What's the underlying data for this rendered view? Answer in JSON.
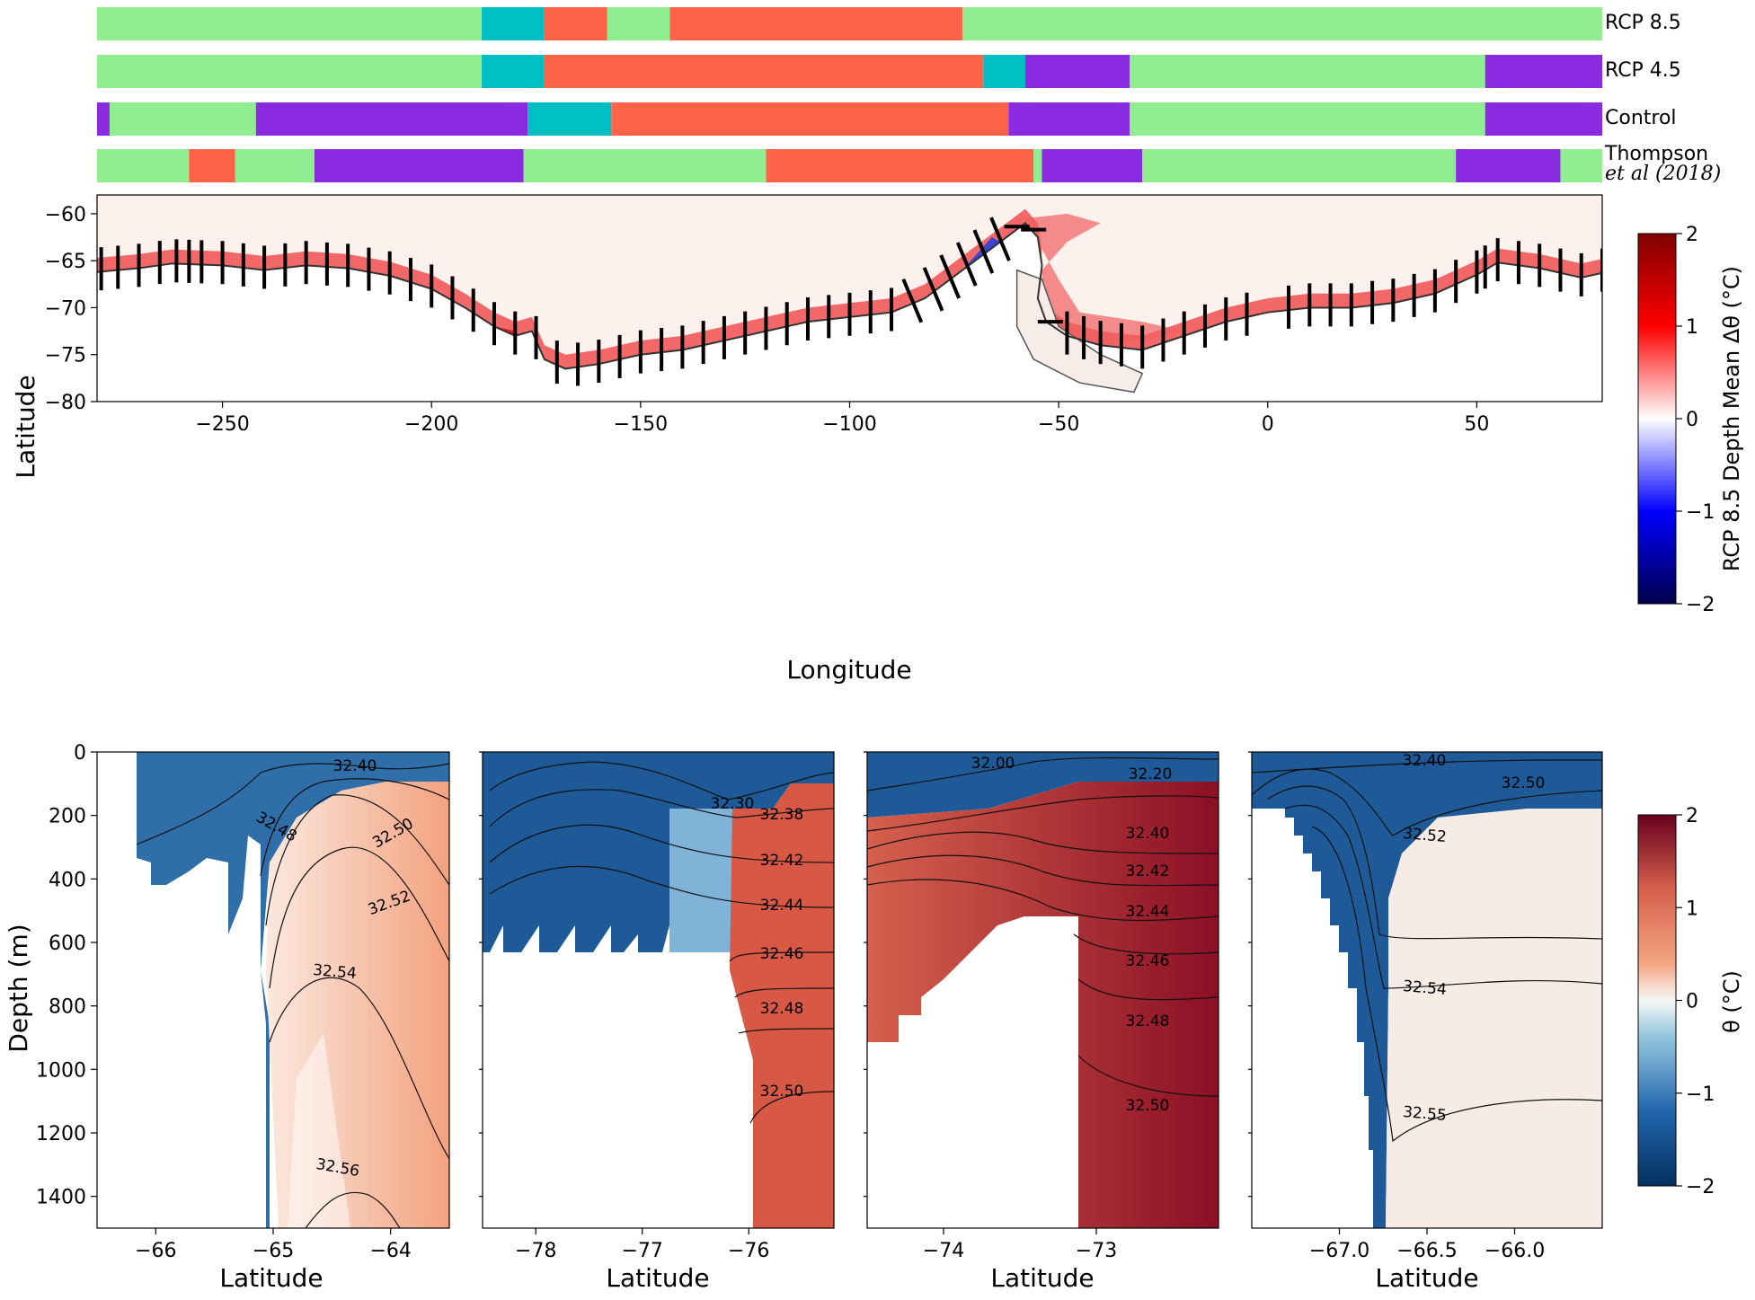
{
  "colors": {
    "green": "#90ee90",
    "teal": "#00bfc4",
    "red": "#ff6347",
    "purple": "#8a2be2",
    "cold": "#08306b",
    "warm": "#b2182b"
  },
  "regime_legend": {
    "rows": [
      {
        "label": "RCP 8.5",
        "label2": "",
        "segments": [
          {
            "from": -280,
            "to": -188,
            "regime": "green"
          },
          {
            "from": -188,
            "to": -173,
            "regime": "teal"
          },
          {
            "from": -173,
            "to": -158,
            "regime": "red"
          },
          {
            "from": -158,
            "to": -143,
            "regime": "green"
          },
          {
            "from": -143,
            "to": -73,
            "regime": "red"
          },
          {
            "from": -73,
            "to": 80,
            "regime": "green"
          }
        ]
      },
      {
        "label": "RCP 4.5",
        "label2": "",
        "segments": [
          {
            "from": -280,
            "to": -188,
            "regime": "green"
          },
          {
            "from": -188,
            "to": -173,
            "regime": "teal"
          },
          {
            "from": -173,
            "to": -68,
            "regime": "red"
          },
          {
            "from": -68,
            "to": -58,
            "regime": "teal"
          },
          {
            "from": -58,
            "to": -33,
            "regime": "purple"
          },
          {
            "from": -33,
            "to": 52,
            "regime": "green"
          },
          {
            "from": 52,
            "to": 80,
            "regime": "purple"
          }
        ]
      },
      {
        "label": "Control",
        "label2": "",
        "segments": [
          {
            "from": -280,
            "to": -277,
            "regime": "purple"
          },
          {
            "from": -277,
            "to": -242,
            "regime": "green"
          },
          {
            "from": -242,
            "to": -177,
            "regime": "purple"
          },
          {
            "from": -177,
            "to": -157,
            "regime": "teal"
          },
          {
            "from": -157,
            "to": -62,
            "regime": "red"
          },
          {
            "from": -62,
            "to": -33,
            "regime": "purple"
          },
          {
            "from": -33,
            "to": 52,
            "regime": "green"
          },
          {
            "from": 52,
            "to": 80,
            "regime": "purple"
          }
        ]
      },
      {
        "label": "Thompson",
        "label2": "et al (2018)",
        "segments": [
          {
            "from": -280,
            "to": -258,
            "regime": "green"
          },
          {
            "from": -258,
            "to": -247,
            "regime": "red"
          },
          {
            "from": -247,
            "to": -228,
            "regime": "green"
          },
          {
            "from": -228,
            "to": -178,
            "regime": "purple"
          },
          {
            "from": -178,
            "to": -120,
            "regime": "green"
          },
          {
            "from": -120,
            "to": -56,
            "regime": "red"
          },
          {
            "from": -56,
            "to": -54,
            "regime": "green"
          },
          {
            "from": -54,
            "to": -30,
            "regime": "purple"
          },
          {
            "from": -30,
            "to": 45,
            "regime": "green"
          },
          {
            "from": 45,
            "to": 70,
            "regime": "purple"
          },
          {
            "from": 70,
            "to": 80,
            "regime": "green"
          }
        ]
      }
    ]
  },
  "chart_data": [
    {
      "type": "heatmap",
      "title": "",
      "xlabel": "Longitude",
      "ylabel": "Latitude",
      "xlim": [
        -280,
        80
      ],
      "ylim": [
        -80,
        -58
      ],
      "xticks": [
        -250,
        -200,
        -150,
        -100,
        -50,
        0,
        50
      ],
      "yticks": [
        -80,
        -75,
        -70,
        -65,
        -60
      ],
      "colorbar": {
        "label": "RCP 8.5 Depth Mean Δθ (°C)",
        "range": [
          -2,
          2
        ],
        "ticks": [
          -2,
          -1,
          0,
          1,
          2
        ],
        "cmap": "seismic"
      },
      "coastline": [
        [
          -280,
          -66.2
        ],
        [
          -270,
          -65.8
        ],
        [
          -262,
          -65.3
        ],
        [
          -250,
          -65.5
        ],
        [
          -240,
          -66.0
        ],
        [
          -230,
          -65.5
        ],
        [
          -220,
          -65.8
        ],
        [
          -210,
          -66.6
        ],
        [
          -200,
          -68.0
        ],
        [
          -192,
          -70.0
        ],
        [
          -185,
          -72.0
        ],
        [
          -180,
          -73.0
        ],
        [
          -176,
          -72.5
        ],
        [
          -173,
          -75.5
        ],
        [
          -168,
          -76.5
        ],
        [
          -160,
          -76.0
        ],
        [
          -150,
          -75.0
        ],
        [
          -140,
          -74.5
        ],
        [
          -130,
          -73.5
        ],
        [
          -120,
          -72.5
        ],
        [
          -110,
          -71.5
        ],
        [
          -100,
          -71.0
        ],
        [
          -90,
          -70.5
        ],
        [
          -82,
          -69.0
        ],
        [
          -76,
          -67.0
        ],
        [
          -70,
          -65.0
        ],
        [
          -64,
          -63.0
        ],
        [
          -58,
          -61.0
        ],
        [
          -55,
          -62.5
        ],
        [
          -54,
          -65.5
        ],
        [
          -55,
          -69.0
        ],
        [
          -53,
          -71.5
        ],
        [
          -48,
          -73.0
        ],
        [
          -40,
          -74.0
        ],
        [
          -30,
          -74.5
        ],
        [
          -20,
          -73.0
        ],
        [
          -10,
          -71.5
        ],
        [
          0,
          -70.5
        ],
        [
          10,
          -70.0
        ],
        [
          20,
          -70.0
        ],
        [
          30,
          -69.5
        ],
        [
          40,
          -68.5
        ],
        [
          50,
          -66.5
        ],
        [
          55,
          -65.2
        ],
        [
          65,
          -65.8
        ],
        [
          75,
          -66.8
        ],
        [
          80,
          -66.3
        ]
      ],
      "sections": [
        -279,
        -275,
        -270,
        -265,
        -261,
        -258,
        -255,
        -250,
        -245,
        -240,
        -235,
        -230,
        -225,
        -220,
        -215,
        -210,
        -205,
        -200,
        -195,
        -190,
        -185,
        -180,
        -175,
        -170,
        -165,
        -160,
        -155,
        -150,
        -145,
        -140,
        -135,
        -130,
        -125,
        -120,
        -115,
        -110,
        -105,
        -100,
        -95,
        -90,
        -85,
        -80,
        -76,
        -72,
        -68,
        -64,
        -60,
        -56,
        -52,
        -48,
        -44,
        -40,
        -35,
        -30,
        -25,
        -20,
        -15,
        -10,
        -5,
        5,
        10,
        15,
        20,
        25,
        30,
        35,
        40,
        45,
        50,
        52,
        55,
        60,
        65,
        70,
        75,
        80
      ],
      "annotations": []
    },
    {
      "type": "heatmap",
      "xlabel": "Latitude",
      "ylabel": "Depth (m)",
      "xlim": [
        -66.5,
        -63.5
      ],
      "ylim": [
        1500,
        0
      ],
      "xticks": [
        -66,
        -65,
        -64
      ],
      "yticks": [
        0,
        200,
        400,
        600,
        800,
        1000,
        1200,
        1400
      ],
      "contour_labels": [
        "32.40",
        "32.48",
        "32.50",
        "32.52",
        "32.54",
        "32.56"
      ]
    },
    {
      "type": "heatmap",
      "xlabel": "Latitude",
      "ylim": [
        1500,
        0
      ],
      "xlim": [
        -78.5,
        -75.2
      ],
      "xticks": [
        -78,
        -77,
        -76
      ],
      "contour_labels": [
        "32.30",
        "32.38",
        "32.42",
        "32.44",
        "32.46",
        "32.48",
        "32.50"
      ]
    },
    {
      "type": "heatmap",
      "xlabel": "Latitude",
      "ylim": [
        1500,
        0
      ],
      "xlim": [
        -74.5,
        -72.2
      ],
      "xticks": [
        -74,
        -73
      ],
      "contour_labels": [
        "32.00",
        "32.20",
        "32.40",
        "32.42",
        "32.44",
        "32.46",
        "32.48",
        "32.50"
      ]
    },
    {
      "type": "heatmap",
      "xlabel": "Latitude",
      "ylim": [
        1500,
        0
      ],
      "xlim": [
        -67.5,
        -65.5
      ],
      "xticks": [
        -67.0,
        -66.5,
        -66.0
      ],
      "xtick_labels": [
        "−67.0",
        "−66.5",
        "−66.0"
      ],
      "contour_labels": [
        "32.40",
        "32.50",
        "32.52",
        "32.54",
        "32.55"
      ]
    }
  ],
  "bottom_colorbar": {
    "label": "θ (°C)",
    "range": [
      -2,
      2
    ],
    "ticks": [
      -2,
      -1,
      0,
      1,
      2
    ]
  }
}
